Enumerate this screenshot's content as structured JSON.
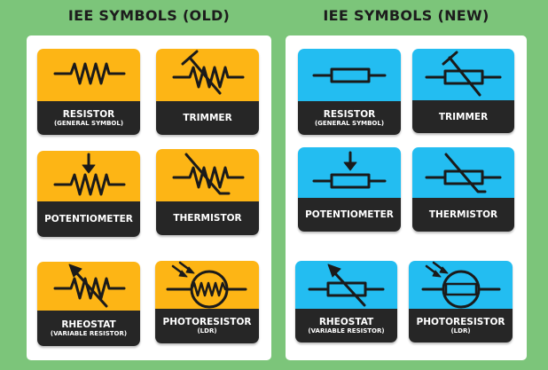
{
  "titles": {
    "old": "IEE SYMBOLS (OLD)",
    "new": "IEE SYMBOLS (NEW)"
  },
  "old_cards": [
    {
      "id": "resistor",
      "line1": "RESISTOR",
      "line2": "(GENERAL SYMBOL)",
      "icon": "zigzag-resistor-icon"
    },
    {
      "id": "trimmer",
      "line1": "TRIMMER",
      "line2": "",
      "icon": "zigzag-trimmer-icon"
    },
    {
      "id": "potentiometer",
      "line1": "POTENTIOMETER",
      "line2": "",
      "icon": "zigzag-potentiometer-icon"
    },
    {
      "id": "thermistor",
      "line1": "THERMISTOR",
      "line2": "",
      "icon": "zigzag-thermistor-icon"
    },
    {
      "id": "rheostat",
      "line1": "RHEOSTAT",
      "line2": "(VARIABLE RESISTOR)",
      "icon": "zigzag-rheostat-icon"
    },
    {
      "id": "photoresistor",
      "line1": "PHOTORESISTOR",
      "line2": "(LDR)",
      "icon": "zigzag-photoresistor-icon"
    }
  ],
  "new_cards": [
    {
      "id": "resistor",
      "line1": "RESISTOR",
      "line2": "(GENERAL SYMBOL)",
      "icon": "box-resistor-icon"
    },
    {
      "id": "trimmer",
      "line1": "TRIMMER",
      "line2": "",
      "icon": "box-trimmer-icon"
    },
    {
      "id": "potentiometer",
      "line1": "POTENTIOMETER",
      "line2": "",
      "icon": "box-potentiometer-icon"
    },
    {
      "id": "thermistor",
      "line1": "THERMISTOR",
      "line2": "",
      "icon": "box-thermistor-icon"
    },
    {
      "id": "rheostat",
      "line1": "RHEOSTAT",
      "line2": "(VARIABLE RESISTOR)",
      "icon": "box-rheostat-icon"
    },
    {
      "id": "photoresistor",
      "line1": "PHOTORESISTOR",
      "line2": "(LDR)",
      "icon": "box-photoresistor-icon"
    }
  ],
  "colors": {
    "background": "#7cc57a",
    "old_card": "#fdb515",
    "new_card": "#23bdf1",
    "label_band": "#262626"
  }
}
